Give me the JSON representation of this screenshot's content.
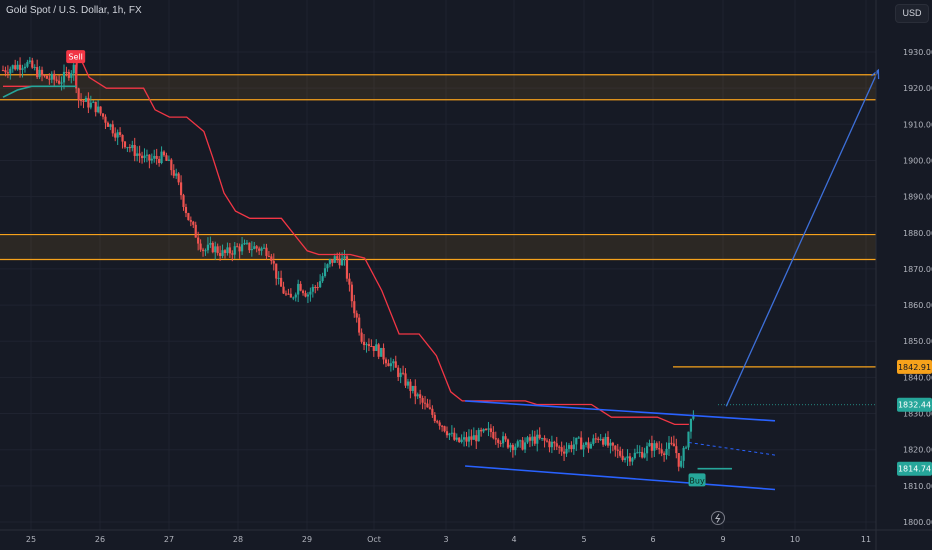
{
  "title": "Gold Spot / U.S. Dollar, 1h, FX",
  "currency_button": "USD",
  "colors": {
    "background": "#161a25",
    "grid": "#1f2330",
    "up": "#26a69a",
    "down": "#ef5350",
    "zone": "#f7a21b",
    "trail": "#f23645",
    "channel": "#2962ff",
    "projection": "#3d6fd9"
  },
  "signals": {
    "sell": "Sell",
    "buy": "Buy"
  },
  "icons": {
    "lightning": "lightning-icon"
  },
  "chart_data": {
    "type": "candlestick",
    "title": "Gold Spot / U.S. Dollar, 1h, FX",
    "x_axis": {
      "ticks": [
        "25",
        "26",
        "27",
        "28",
        "29",
        "Oct",
        "3",
        "4",
        "5",
        "6",
        "9",
        "10",
        "11"
      ]
    },
    "y_axis": {
      "range": [
        1797,
        1937
      ],
      "ticks": [
        1800,
        1810,
        1820,
        1830,
        1840,
        1850,
        1860,
        1870,
        1880,
        1890,
        1900,
        1910,
        1920,
        1930
      ]
    },
    "price_tags": [
      {
        "value": "1842.91",
        "kind": "horizontal-line"
      },
      {
        "value": "1832.44",
        "kind": "last-price"
      },
      {
        "value": "1814.74",
        "kind": "signal-level"
      }
    ],
    "zones": [
      {
        "from": 1916.8,
        "to": 1923.7
      },
      {
        "from": 1872.6,
        "to": 1879.5
      }
    ],
    "horizontal_line": 1842.91,
    "price_path": [
      {
        "x": 0,
        "p": 1925
      },
      {
        "x": 0.8,
        "p": 1927
      },
      {
        "x": 1.4,
        "p": 1923
      },
      {
        "x": 2.0,
        "p": 1922
      },
      {
        "x": 2.5,
        "p": 1926
      },
      {
        "x": 2.6,
        "p": 1917
      },
      {
        "x": 3.2,
        "p": 1915
      },
      {
        "x": 4.0,
        "p": 1907
      },
      {
        "x": 4.5,
        "p": 1903
      },
      {
        "x": 5.0,
        "p": 1900
      },
      {
        "x": 5.6,
        "p": 1901
      },
      {
        "x": 6.0,
        "p": 1896
      },
      {
        "x": 6.5,
        "p": 1883
      },
      {
        "x": 7.0,
        "p": 1875
      },
      {
        "x": 7.3,
        "p": 1876
      },
      {
        "x": 7.7,
        "p": 1874
      },
      {
        "x": 8.2,
        "p": 1876
      },
      {
        "x": 8.7,
        "p": 1876
      },
      {
        "x": 9.3,
        "p": 1875
      },
      {
        "x": 9.6,
        "p": 1866
      },
      {
        "x": 10.0,
        "p": 1861
      },
      {
        "x": 10.3,
        "p": 1866
      },
      {
        "x": 10.6,
        "p": 1863
      },
      {
        "x": 11.0,
        "p": 1866
      },
      {
        "x": 11.4,
        "p": 1872
      },
      {
        "x": 11.6,
        "p": 1873
      },
      {
        "x": 11.9,
        "p": 1872
      },
      {
        "x": 12.1,
        "p": 1863
      },
      {
        "x": 12.5,
        "p": 1851
      },
      {
        "x": 13.0,
        "p": 1848
      },
      {
        "x": 13.6,
        "p": 1843
      },
      {
        "x": 14.2,
        "p": 1837
      },
      {
        "x": 14.8,
        "p": 1831
      },
      {
        "x": 15.3,
        "p": 1827
      },
      {
        "x": 15.8,
        "p": 1822
      },
      {
        "x": 16.3,
        "p": 1823
      },
      {
        "x": 16.6,
        "p": 1824
      },
      {
        "x": 17.0,
        "p": 1825
      },
      {
        "x": 17.5,
        "p": 1822
      },
      {
        "x": 18.0,
        "p": 1821
      },
      {
        "x": 18.5,
        "p": 1823
      },
      {
        "x": 19.0,
        "p": 1822
      },
      {
        "x": 19.5,
        "p": 1820
      },
      {
        "x": 20.0,
        "p": 1822
      },
      {
        "x": 20.4,
        "p": 1821
      },
      {
        "x": 20.8,
        "p": 1824
      },
      {
        "x": 21.2,
        "p": 1820
      },
      {
        "x": 21.7,
        "p": 1818
      },
      {
        "x": 22.2,
        "p": 1819
      },
      {
        "x": 22.6,
        "p": 1821
      },
      {
        "x": 23.0,
        "p": 1820
      },
      {
        "x": 23.4,
        "p": 1821
      },
      {
        "x": 23.6,
        "p": 1815
      },
      {
        "x": 23.8,
        "p": 1822
      },
      {
        "x": 24.1,
        "p": 1832.44
      }
    ],
    "trailing_stop": [
      {
        "x": 0,
        "p": 1920.5
      },
      {
        "x": 2.55,
        "p": 1920.5
      },
      {
        "x": 2.6,
        "p": 1930
      },
      {
        "x": 3.0,
        "p": 1923
      },
      {
        "x": 3.6,
        "p": 1920
      },
      {
        "x": 4.2,
        "p": 1920
      },
      {
        "x": 4.9,
        "p": 1920
      },
      {
        "x": 5.3,
        "p": 1914
      },
      {
        "x": 5.8,
        "p": 1912
      },
      {
        "x": 6.4,
        "p": 1912
      },
      {
        "x": 7.0,
        "p": 1908
      },
      {
        "x": 7.3,
        "p": 1901
      },
      {
        "x": 7.7,
        "p": 1891
      },
      {
        "x": 8.1,
        "p": 1886
      },
      {
        "x": 8.6,
        "p": 1884
      },
      {
        "x": 9.2,
        "p": 1884
      },
      {
        "x": 9.7,
        "p": 1884
      },
      {
        "x": 10.2,
        "p": 1879
      },
      {
        "x": 10.6,
        "p": 1875
      },
      {
        "x": 11.0,
        "p": 1874
      },
      {
        "x": 12.1,
        "p": 1874
      },
      {
        "x": 12.6,
        "p": 1873
      },
      {
        "x": 13.2,
        "p": 1864
      },
      {
        "x": 13.8,
        "p": 1852
      },
      {
        "x": 14.5,
        "p": 1852
      },
      {
        "x": 15.1,
        "p": 1846
      },
      {
        "x": 15.6,
        "p": 1836
      },
      {
        "x": 16.0,
        "p": 1833.5
      },
      {
        "x": 18.2,
        "p": 1833.5
      },
      {
        "x": 18.6,
        "p": 1832.5
      },
      {
        "x": 20.5,
        "p": 1832.5
      },
      {
        "x": 21.2,
        "p": 1829
      },
      {
        "x": 22.8,
        "p": 1829
      },
      {
        "x": 23.4,
        "p": 1827
      },
      {
        "x": 23.9,
        "p": 1827
      }
    ],
    "green_line": [
      {
        "x": 0,
        "p": 1917.5
      },
      {
        "x": 0.5,
        "p": 1919.5
      },
      {
        "x": 1.0,
        "p": 1920.5
      },
      {
        "x": 2.55,
        "p": 1920.5
      }
    ],
    "channel_upper": [
      {
        "x": 16.1,
        "p": 1833.5
      },
      {
        "x": 26.9,
        "p": 1828
      }
    ],
    "channel_lower": [
      {
        "x": 16.1,
        "p": 1815.5
      },
      {
        "x": 26.9,
        "p": 1809
      }
    ],
    "channel_mid": [
      {
        "x": 23.9,
        "p": 1822
      },
      {
        "x": 26.9,
        "p": 1818.5
      }
    ],
    "projection": [
      {
        "x": 25.2,
        "p": 1832
      },
      {
        "x": 30.5,
        "p": 1925
      }
    ],
    "sell_signal": {
      "x": 2.55,
      "p": 1925
    },
    "buy_signal": {
      "x": 24.2,
      "p": 1811.5
    },
    "buy_level": {
      "x1": 24.2,
      "x2": 25.4,
      "p": 1814.74
    }
  }
}
